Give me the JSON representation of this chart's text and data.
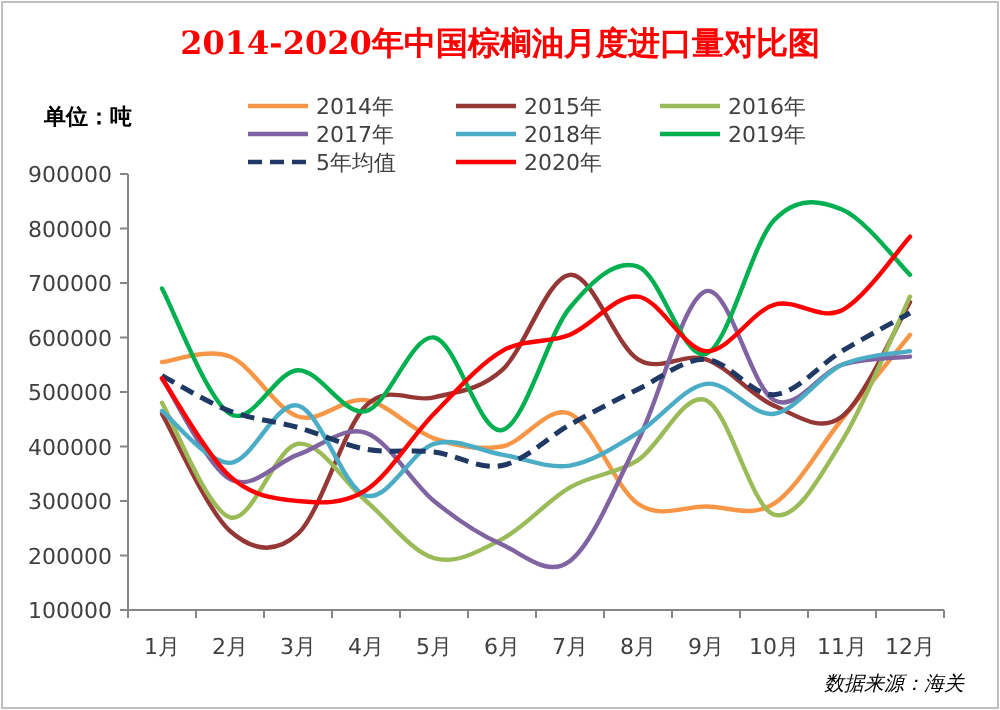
{
  "chart_data": {
    "type": "line",
    "title": "2014-2020年中国棕榈油月度进口量对比图",
    "ylabel": "单位：吨",
    "categories": [
      "1月",
      "2月",
      "3月",
      "4月",
      "5月",
      "6月",
      "7月",
      "8月",
      "9月",
      "10月",
      "11月",
      "12月"
    ],
    "series": [
      {
        "name": "2014年",
        "color": "#f79646",
        "values": [
          555000,
          565000,
          455000,
          485000,
          415000,
          400000,
          460000,
          295000,
          290000,
          295000,
          450000,
          605000
        ]
      },
      {
        "name": "2015年",
        "color": "#953735",
        "values": [
          460000,
          245000,
          240000,
          475000,
          490000,
          540000,
          715000,
          560000,
          560000,
          475000,
          455000,
          665000
        ]
      },
      {
        "name": "2016年",
        "color": "#9bbb59",
        "values": [
          480000,
          270000,
          405000,
          300000,
          195000,
          230000,
          325000,
          375000,
          485000,
          275000,
          410000,
          675000
        ]
      },
      {
        "name": "2017年",
        "color": "#8064a2",
        "values": [
          525000,
          340000,
          385000,
          425000,
          300000,
          220000,
          190000,
          410000,
          685000,
          485000,
          550000,
          565000
        ]
      },
      {
        "name": "2018年",
        "color": "#4bacc6",
        "values": [
          465000,
          370000,
          475000,
          310000,
          405000,
          385000,
          365000,
          425000,
          515000,
          460000,
          550000,
          575000
        ]
      },
      {
        "name": "2019年",
        "color": "#00b050",
        "values": [
          690000,
          460000,
          540000,
          465000,
          600000,
          430000,
          655000,
          730000,
          570000,
          815000,
          835000,
          715000
        ]
      },
      {
        "name": "5年均值",
        "color": "#1f3864",
        "line_style": "dashed",
        "values": [
          530000,
          465000,
          435000,
          395000,
          390000,
          365000,
          440000,
          505000,
          560000,
          495000,
          575000,
          645000
        ]
      },
      {
        "name": "2020年",
        "color": "#ff0000",
        "values": [
          525000,
          345000,
          300000,
          320000,
          460000,
          575000,
          605000,
          675000,
          575000,
          660000,
          650000,
          785000
        ]
      }
    ],
    "ylim": [
      100000,
      900000
    ],
    "yticks": [
      100000,
      200000,
      300000,
      400000,
      500000,
      600000,
      700000,
      800000,
      900000
    ],
    "legend": "top",
    "annotations": [
      "数据来源：海关"
    ]
  }
}
